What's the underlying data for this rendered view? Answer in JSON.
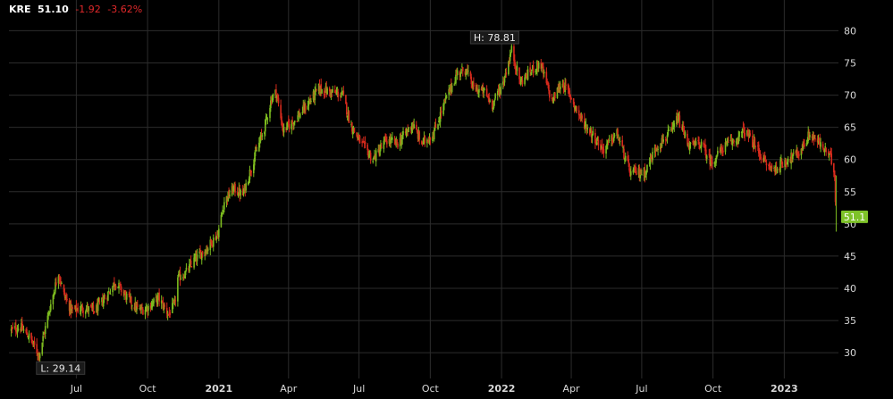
{
  "header": {
    "symbol": "KRE",
    "last": "51.10",
    "change": "-1.92",
    "change_pct": "-3.62%"
  },
  "colors": {
    "background": "#000000",
    "grid": "#2c2c2c",
    "up": "#7dbb1f",
    "down": "#d62a1d",
    "axis_text": "#d8d8d8",
    "last_price_bg": "#7ec229"
  },
  "chart_data": {
    "type": "candlestick",
    "title": "KRE 51.10 -1.92 -3.62%",
    "grid": true,
    "y_axis_position": "right",
    "ylim": [
      26,
      82
    ],
    "y_ticks": [
      30,
      35,
      40,
      45,
      50,
      55,
      60,
      65,
      70,
      75,
      80
    ],
    "x_range": [
      "2020-04-05",
      "2023-03-12"
    ],
    "x_ticks": [
      {
        "date": "2020-07-01",
        "label": "Jul"
      },
      {
        "date": "2020-10-01",
        "label": "Oct"
      },
      {
        "date": "2021-01-01",
        "label": "2021",
        "bold": true
      },
      {
        "date": "2021-04-01",
        "label": "Apr"
      },
      {
        "date": "2021-07-01",
        "label": "Jul"
      },
      {
        "date": "2021-10-01",
        "label": "Oct"
      },
      {
        "date": "2022-01-01",
        "label": "2022",
        "bold": true
      },
      {
        "date": "2022-04-01",
        "label": "Apr"
      },
      {
        "date": "2022-07-01",
        "label": "Jul"
      },
      {
        "date": "2022-10-01",
        "label": "Oct"
      },
      {
        "date": "2023-01-01",
        "label": "2023",
        "bold": true
      }
    ],
    "high": {
      "label": "H: 78.81",
      "value": 78.81,
      "date": "2022-01-14"
    },
    "low": {
      "label": "L: 29.14",
      "value": 29.14,
      "date": "2020-05-14"
    },
    "last_price": {
      "label": "51.1",
      "value": 51.1
    },
    "close_path": [
      [
        "2020-04-08",
        33.5
      ],
      [
        "2020-04-20",
        34.0
      ],
      [
        "2020-05-01",
        32.5
      ],
      [
        "2020-05-14",
        29.6
      ],
      [
        "2020-05-26",
        36.0
      ],
      [
        "2020-06-08",
        42.5
      ],
      [
        "2020-06-15",
        39.0
      ],
      [
        "2020-06-25",
        36.5
      ],
      [
        "2020-07-10",
        37.0
      ],
      [
        "2020-07-25",
        36.5
      ],
      [
        "2020-08-10",
        39.0
      ],
      [
        "2020-08-20",
        41.0
      ],
      [
        "2020-09-05",
        38.5
      ],
      [
        "2020-09-20",
        36.5
      ],
      [
        "2020-10-01",
        37.0
      ],
      [
        "2020-10-15",
        38.5
      ],
      [
        "2020-10-28",
        36.0
      ],
      [
        "2020-11-05",
        37.5
      ],
      [
        "2020-11-09",
        41.5
      ],
      [
        "2020-11-20",
        42.5
      ],
      [
        "2020-12-01",
        44.5
      ],
      [
        "2020-12-15",
        46.0
      ],
      [
        "2020-12-31",
        48.5
      ],
      [
        "2021-01-08",
        53.5
      ],
      [
        "2021-01-20",
        55.5
      ],
      [
        "2021-02-01",
        54.5
      ],
      [
        "2021-02-15",
        60.0
      ],
      [
        "2021-03-01",
        65.0
      ],
      [
        "2021-03-10",
        69.5
      ],
      [
        "2021-03-16",
        70.5
      ],
      [
        "2021-03-25",
        64.5
      ],
      [
        "2021-04-08",
        66.0
      ],
      [
        "2021-04-22",
        68.0
      ],
      [
        "2021-05-10",
        71.0
      ],
      [
        "2021-05-25",
        70.5
      ],
      [
        "2021-06-10",
        70.0
      ],
      [
        "2021-06-20",
        65.5
      ],
      [
        "2021-07-01",
        63.0
      ],
      [
        "2021-07-19",
        60.0
      ],
      [
        "2021-08-05",
        63.0
      ],
      [
        "2021-08-20",
        62.5
      ],
      [
        "2021-09-08",
        65.5
      ],
      [
        "2021-09-20",
        62.5
      ],
      [
        "2021-10-05",
        64.0
      ],
      [
        "2021-10-20",
        69.0
      ],
      [
        "2021-11-05",
        73.5
      ],
      [
        "2021-11-16",
        74.0
      ],
      [
        "2021-11-26",
        71.0
      ],
      [
        "2021-12-10",
        70.5
      ],
      [
        "2021-12-20",
        68.5
      ],
      [
        "2022-01-03",
        72.0
      ],
      [
        "2022-01-14",
        77.0
      ],
      [
        "2022-01-25",
        72.0
      ],
      [
        "2022-02-10",
        74.0
      ],
      [
        "2022-02-20",
        75.0
      ],
      [
        "2022-03-07",
        69.0
      ],
      [
        "2022-03-20",
        72.0
      ],
      [
        "2022-03-30",
        70.0
      ],
      [
        "2022-04-15",
        66.0
      ],
      [
        "2022-05-01",
        63.5
      ],
      [
        "2022-05-12",
        61.5
      ],
      [
        "2022-05-30",
        64.0
      ],
      [
        "2022-06-16",
        58.0
      ],
      [
        "2022-07-05",
        58.0
      ],
      [
        "2022-07-20",
        62.0
      ],
      [
        "2022-08-10",
        64.5
      ],
      [
        "2022-08-16",
        66.5
      ],
      [
        "2022-09-01",
        62.0
      ],
      [
        "2022-09-15",
        62.5
      ],
      [
        "2022-09-29",
        59.5
      ],
      [
        "2022-10-15",
        62.0
      ],
      [
        "2022-10-30",
        63.0
      ],
      [
        "2022-11-10",
        64.5
      ],
      [
        "2022-11-28",
        61.5
      ],
      [
        "2022-12-10",
        59.0
      ],
      [
        "2022-12-20",
        58.5
      ],
      [
        "2023-01-05",
        60.0
      ],
      [
        "2023-01-20",
        61.0
      ],
      [
        "2023-02-03",
        64.0
      ],
      [
        "2023-02-15",
        62.5
      ],
      [
        "2023-03-01",
        60.5
      ],
      [
        "2023-03-07",
        58.0
      ],
      [
        "2023-03-08",
        53.5
      ],
      [
        "2023-03-09",
        51.1
      ]
    ]
  }
}
